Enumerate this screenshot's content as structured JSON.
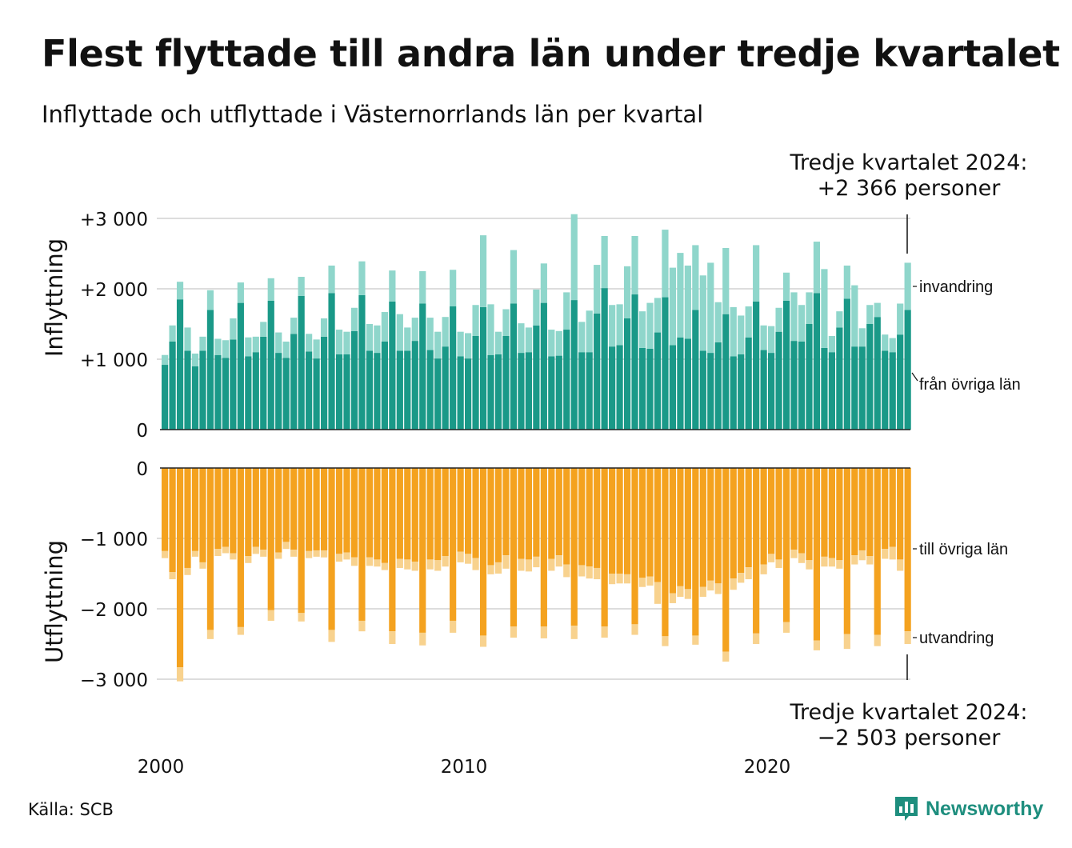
{
  "title": "Flest flyttade till andra län under tredje kvartalet",
  "subtitle": "Inflyttade och utflyttade i Västernorrlands län per kvartal",
  "source": "Källa: SCB",
  "logo": {
    "text": "Newsworthy",
    "icon": "newsworthy-logo-icon"
  },
  "colors": {
    "in_regional": "#1a9988",
    "in_immigration": "#8fd6cb",
    "out_regional": "#f4a21f",
    "out_emigration": "#f8d28e",
    "grid": "#dddddd",
    "axis": "#222222",
    "brand": "#1e8e7e"
  },
  "annotations": {
    "top": {
      "line1": "Tredje kvartalet 2024:",
      "line2": "+2 366 personer"
    },
    "bottom": {
      "line1": "Tredje kvartalet 2024:",
      "line2": "−2 503 personer"
    }
  },
  "chart_data": [
    {
      "type": "bar",
      "stacked": true,
      "ylabel": "Inflyttning",
      "ylim": [
        0,
        3000
      ],
      "yticks": [
        0,
        1000,
        2000,
        3000
      ],
      "ytick_labels": [
        "0",
        "+1 000",
        "+2 000",
        "+3 000"
      ],
      "xlabel": "",
      "x_start": "2000 Q1",
      "x_ticks": [
        "2000",
        "2010",
        "2020"
      ],
      "grid": true,
      "series": [
        {
          "name": "från övriga län",
          "values": [
            920,
            1250,
            1850,
            1120,
            900,
            1120,
            1700,
            1060,
            1020,
            1280,
            1800,
            1040,
            1100,
            1320,
            1830,
            1090,
            1020,
            1360,
            1900,
            1110,
            1010,
            1320,
            1940,
            1070,
            1070,
            1400,
            1910,
            1120,
            1090,
            1250,
            1820,
            1120,
            1120,
            1260,
            1790,
            1130,
            1010,
            1180,
            1750,
            1040,
            1010,
            1330,
            1740,
            1060,
            1070,
            1330,
            1790,
            1090,
            1100,
            1480,
            1800,
            1040,
            1050,
            1420,
            1840,
            1100,
            1100,
            1650,
            2010,
            1180,
            1200,
            1580,
            1920,
            1160,
            1150,
            1380,
            1880,
            1200,
            1310,
            1290,
            1700,
            1120,
            1090,
            1240,
            1640,
            1040,
            1070,
            1310,
            1820,
            1130,
            1090,
            1390,
            1830,
            1260,
            1250,
            1500,
            1940,
            1160,
            1100,
            1450,
            1860,
            1180,
            1180,
            1500,
            1600,
            1120,
            1100,
            1350,
            1700
          ]
        },
        {
          "name": "invandring",
          "values": [
            140,
            230,
            250,
            330,
            180,
            200,
            280,
            230,
            250,
            300,
            290,
            270,
            220,
            210,
            320,
            290,
            230,
            230,
            270,
            250,
            270,
            260,
            390,
            350,
            320,
            330,
            480,
            380,
            390,
            420,
            440,
            520,
            330,
            330,
            460,
            460,
            380,
            420,
            520,
            350,
            360,
            440,
            1020,
            720,
            320,
            380,
            760,
            420,
            350,
            510,
            560,
            380,
            350,
            530,
            1220,
            430,
            590,
            690,
            740,
            590,
            580,
            740,
            830,
            520,
            650,
            490,
            960,
            1100,
            1200,
            1040,
            920,
            1070,
            1280,
            570,
            940,
            700,
            550,
            440,
            800,
            350,
            380,
            340,
            400,
            690,
            520,
            450,
            730,
            1120,
            230,
            230,
            470,
            870,
            260,
            270,
            200,
            230,
            200,
            440,
            670
          ]
        }
      ]
    },
    {
      "type": "bar",
      "stacked": true,
      "ylabel": "Utflyttning",
      "ylim": [
        -3000,
        0
      ],
      "yticks": [
        -3000,
        -2000,
        -1000,
        0
      ],
      "ytick_labels": [
        "−3 000",
        "−2 000",
        "−1 000",
        "0"
      ],
      "xlabel": "",
      "x_start": "2000 Q1",
      "x_ticks": [
        "2000",
        "2010",
        "2020"
      ],
      "grid": true,
      "series": [
        {
          "name": "till övriga län",
          "values": [
            -1180,
            -1480,
            -2830,
            -1420,
            -1180,
            -1340,
            -2300,
            -1150,
            -1120,
            -1210,
            -2260,
            -1250,
            -1120,
            -1160,
            -2020,
            -1200,
            -1050,
            -1160,
            -2060,
            -1180,
            -1170,
            -1170,
            -2300,
            -1220,
            -1200,
            -1270,
            -2170,
            -1270,
            -1300,
            -1350,
            -2320,
            -1290,
            -1300,
            -1330,
            -2340,
            -1300,
            -1310,
            -1250,
            -2170,
            -1190,
            -1220,
            -1280,
            -2380,
            -1380,
            -1340,
            -1240,
            -2250,
            -1290,
            -1300,
            -1260,
            -2250,
            -1290,
            -1240,
            -1370,
            -2240,
            -1380,
            -1400,
            -1420,
            -2250,
            -1500,
            -1500,
            -1510,
            -2220,
            -1560,
            -1540,
            -1620,
            -2390,
            -1780,
            -1680,
            -1720,
            -2380,
            -1690,
            -1600,
            -1640,
            -2610,
            -1570,
            -1490,
            -1410,
            -2350,
            -1370,
            -1220,
            -1300,
            -2190,
            -1160,
            -1210,
            -1310,
            -2450,
            -1260,
            -1280,
            -1310,
            -2360,
            -1240,
            -1170,
            -1250,
            -2370,
            -1150,
            -1120,
            -1300,
            -2320
          ]
        },
        {
          "name": "utvandring",
          "values": [
            -100,
            -100,
            -200,
            -100,
            -80,
            -90,
            -130,
            -100,
            -90,
            -90,
            -110,
            -100,
            -100,
            -100,
            -150,
            -90,
            -100,
            -100,
            -120,
            -100,
            -90,
            -100,
            -170,
            -110,
            -100,
            -120,
            -150,
            -120,
            -100,
            -100,
            -180,
            -130,
            -140,
            -130,
            -180,
            -140,
            -150,
            -150,
            -170,
            -150,
            -140,
            -170,
            -160,
            -130,
            -160,
            -190,
            -160,
            -170,
            -170,
            -150,
            -170,
            -170,
            -160,
            -180,
            -190,
            -160,
            -170,
            -160,
            -160,
            -150,
            -140,
            -130,
            -150,
            -130,
            -130,
            -310,
            -140,
            -140,
            -150,
            -140,
            -130,
            -140,
            -140,
            -150,
            -140,
            -160,
            -140,
            -170,
            -150,
            -140,
            -120,
            -120,
            -150,
            -120,
            -140,
            -130,
            -140,
            -140,
            -120,
            -120,
            -210,
            -130,
            -140,
            -120,
            -160,
            -140,
            -180,
            -160,
            -180
          ]
        }
      ]
    }
  ]
}
